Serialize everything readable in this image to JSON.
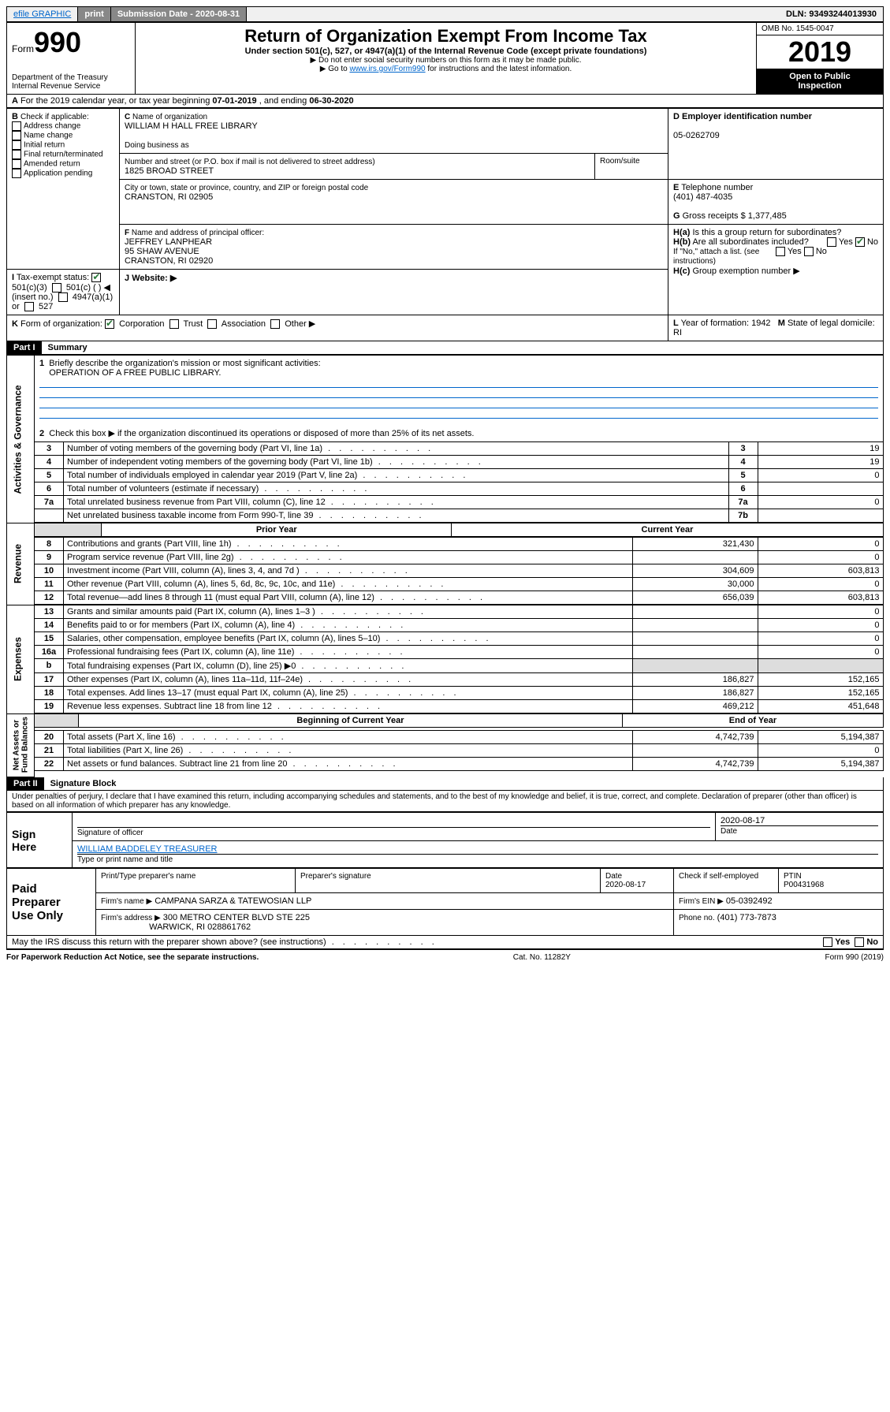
{
  "topbar": {
    "efile": "efile GRAPHIC",
    "print": "print",
    "submission_label": "Submission Date - ",
    "submission_date": "2020-08-31",
    "dln_label": "DLN: ",
    "dln": "93493244013930"
  },
  "header": {
    "form_prefix": "Form",
    "form_number": "990",
    "dept": "Department of the Treasury\nInternal Revenue Service",
    "title": "Return of Organization Exempt From Income Tax",
    "subtitle": "Under section 501(c), 527, or 4947(a)(1) of the Internal Revenue Code (except private foundations)",
    "instr1": "▶ Do not enter social security numbers on this form as it may be made public.",
    "instr2_pre": "▶ Go to ",
    "instr2_link": "www.irs.gov/Form990",
    "instr2_post": " for instructions and the latest information.",
    "omb": "OMB No. 1545-0047",
    "year": "2019",
    "open": "Open to Public\nInspection"
  },
  "A": {
    "text": "For the 2019 calendar year, or tax year beginning ",
    "begin": "07-01-2019",
    "mid": " , and ending ",
    "end": "06-30-2020"
  },
  "B": {
    "label": "Check if applicable:",
    "items": [
      "Address change",
      "Name change",
      "Initial return",
      "Final return/terminated",
      "Amended return",
      "Application pending"
    ]
  },
  "C": {
    "name_label": "Name of organization",
    "name": "WILLIAM H HALL FREE LIBRARY",
    "dba_label": "Doing business as",
    "addr_label": "Number and street (or P.O. box if mail is not delivered to street address)",
    "room_label": "Room/suite",
    "addr": "1825 BROAD STREET",
    "city_label": "City or town, state or province, country, and ZIP or foreign postal code",
    "city": "CRANSTON, RI  02905"
  },
  "D": {
    "label": "Employer identification number",
    "value": "05-0262709"
  },
  "E": {
    "label": "Telephone number",
    "value": "(401) 487-4035"
  },
  "G": {
    "label": "Gross receipts $",
    "value": "1,377,485"
  },
  "F": {
    "label": "Name and address of principal officer:",
    "name": "JEFFREY LANPHEAR",
    "addr1": "95 SHAW AVENUE",
    "addr2": "CRANSTON, RI  02920"
  },
  "H": {
    "a": "Is this a group return for subordinates?",
    "b": "Are all subordinates included?",
    "b_note": "If \"No,\" attach a list. (see instructions)",
    "c": "Group exemption number ▶"
  },
  "I": {
    "label": "Tax-exempt status:",
    "c3": "501(c)(3)",
    "c": "501(c) (    ) ◀ (insert no.)",
    "a1": "4947(a)(1) or",
    "s527": "527"
  },
  "J": {
    "label": "Website: ▶"
  },
  "K": {
    "label": "Form of organization:",
    "corp": "Corporation",
    "trust": "Trust",
    "assoc": "Association",
    "other": "Other ▶"
  },
  "L": {
    "label": "Year of formation:",
    "value": "1942"
  },
  "M": {
    "label": "State of legal domicile:",
    "value": "RI"
  },
  "part1": {
    "header": "Part I",
    "title": "Summary"
  },
  "summary": {
    "q1": "Briefly describe the organization's mission or most significant activities:",
    "mission": "OPERATION OF A FREE PUBLIC LIBRARY.",
    "q2": "Check this box ▶        if the organization discontinued its operations or disposed of more than 25% of its net assets.",
    "rows_gov": [
      {
        "n": "3",
        "t": "Number of voting members of the governing body (Part VI, line 1a)",
        "rn": "3",
        "v": "19"
      },
      {
        "n": "4",
        "t": "Number of independent voting members of the governing body (Part VI, line 1b)",
        "rn": "4",
        "v": "19"
      },
      {
        "n": "5",
        "t": "Total number of individuals employed in calendar year 2019 (Part V, line 2a)",
        "rn": "5",
        "v": "0"
      },
      {
        "n": "6",
        "t": "Total number of volunteers (estimate if necessary)",
        "rn": "6",
        "v": ""
      },
      {
        "n": "7a",
        "t": "Total unrelated business revenue from Part VIII, column (C), line 12",
        "rn": "7a",
        "v": "0"
      },
      {
        "n": "",
        "t": "Net unrelated business taxable income from Form 990-T, line 39",
        "rn": "7b",
        "v": ""
      }
    ],
    "col_prior": "Prior Year",
    "col_current": "Current Year",
    "rows_rev": [
      {
        "n": "8",
        "t": "Contributions and grants (Part VIII, line 1h)",
        "p": "321,430",
        "c": "0"
      },
      {
        "n": "9",
        "t": "Program service revenue (Part VIII, line 2g)",
        "p": "",
        "c": "0"
      },
      {
        "n": "10",
        "t": "Investment income (Part VIII, column (A), lines 3, 4, and 7d )",
        "p": "304,609",
        "c": "603,813"
      },
      {
        "n": "11",
        "t": "Other revenue (Part VIII, column (A), lines 5, 6d, 8c, 9c, 10c, and 11e)",
        "p": "30,000",
        "c": "0"
      },
      {
        "n": "12",
        "t": "Total revenue—add lines 8 through 11 (must equal Part VIII, column (A), line 12)",
        "p": "656,039",
        "c": "603,813"
      }
    ],
    "rows_exp": [
      {
        "n": "13",
        "t": "Grants and similar amounts paid (Part IX, column (A), lines 1–3 )",
        "p": "",
        "c": "0"
      },
      {
        "n": "14",
        "t": "Benefits paid to or for members (Part IX, column (A), line 4)",
        "p": "",
        "c": "0"
      },
      {
        "n": "15",
        "t": "Salaries, other compensation, employee benefits (Part IX, column (A), lines 5–10)",
        "p": "",
        "c": "0"
      },
      {
        "n": "16a",
        "t": "Professional fundraising fees (Part IX, column (A), line 11e)",
        "p": "",
        "c": "0"
      },
      {
        "n": "b",
        "t": "Total fundraising expenses (Part IX, column (D), line 25) ▶0",
        "p": "shade",
        "c": "shade"
      },
      {
        "n": "17",
        "t": "Other expenses (Part IX, column (A), lines 11a–11d, 11f–24e)",
        "p": "186,827",
        "c": "152,165"
      },
      {
        "n": "18",
        "t": "Total expenses. Add lines 13–17 (must equal Part IX, column (A), line 25)",
        "p": "186,827",
        "c": "152,165"
      },
      {
        "n": "19",
        "t": "Revenue less expenses. Subtract line 18 from line 12",
        "p": "469,212",
        "c": "451,648"
      }
    ],
    "col_boy": "Beginning of Current Year",
    "col_eoy": "End of Year",
    "rows_net": [
      {
        "n": "20",
        "t": "Total assets (Part X, line 16)",
        "p": "4,742,739",
        "c": "5,194,387"
      },
      {
        "n": "21",
        "t": "Total liabilities (Part X, line 26)",
        "p": "",
        "c": "0"
      },
      {
        "n": "22",
        "t": "Net assets or fund balances. Subtract line 21 from line 20",
        "p": "4,742,739",
        "c": "5,194,387"
      }
    ],
    "side_gov": "Activities & Governance",
    "side_rev": "Revenue",
    "side_exp": "Expenses",
    "side_net": "Net Assets or\nFund Balances"
  },
  "part2": {
    "header": "Part II",
    "title": "Signature Block",
    "perjury": "Under penalties of perjury, I declare that I have examined this return, including accompanying schedules and statements, and to the best of my knowledge and belief, it is true, correct, and complete. Declaration of preparer (other than officer) is based on all information of which preparer has any knowledge."
  },
  "sign": {
    "here": "Sign\nHere",
    "sig_officer": "Signature of officer",
    "date": "2020-08-17",
    "date_label": "Date",
    "printed": "WILLIAM BADDELEY TREASURER",
    "printed_label": "Type or print name and title"
  },
  "paid": {
    "label": "Paid\nPreparer\nUse Only",
    "col1": "Print/Type preparer's name",
    "col2": "Preparer's signature",
    "col3": "Date",
    "date": "2020-08-17",
    "col4": "Check        if self-employed",
    "col5": "PTIN",
    "ptin": "P00431968",
    "firm_label": "Firm's name    ▶",
    "firm": "CAMPANA SARZA & TATEWOSIAN LLP",
    "ein_label": "Firm's EIN ▶",
    "ein": "05-0392492",
    "addr_label": "Firm's address ▶",
    "addr": "300 METRO CENTER BLVD STE 225",
    "addr2": "WARWICK, RI  028861762",
    "phone_label": "Phone no.",
    "phone": "(401) 773-7873"
  },
  "discuss": "May the IRS discuss this return with the preparer shown above? (see instructions)",
  "footer": {
    "left": "For Paperwork Reduction Act Notice, see the separate instructions.",
    "mid": "Cat. No. 11282Y",
    "right": "Form 990 (2019)"
  }
}
